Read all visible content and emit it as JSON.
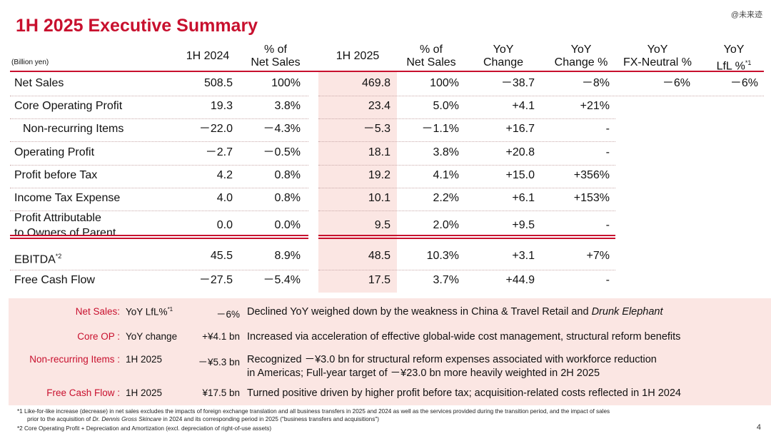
{
  "title": "1H 2025 Executive Summary",
  "watermark": "@未来迹",
  "unit_label": "(Billion yen)",
  "headers": {
    "h2024": "1H 2024",
    "pct2024_1": "% of",
    "pct2024_2": "Net Sales",
    "h2025": "1H 2025",
    "pct2025_1": "% of",
    "pct2025_2": "Net Sales",
    "yoy_1": "YoY",
    "yoy_2": "Change",
    "yoyp_1": "YoY",
    "yoyp_2": "Change %",
    "fx_1": "YoY",
    "fx_2": "FX-Neutral %",
    "lfl_1": "YoY",
    "lfl_2": "LfL %",
    "lfl_sup": "*1"
  },
  "rows": [
    {
      "label": "Net Sales",
      "v2024": "508.5",
      "p2024": "100%",
      "v2025": "469.8",
      "p2025": "100%",
      "chg": "－38.7",
      "chgp": "－8%",
      "fx": "－6%",
      "lfl": "－6%"
    },
    {
      "label": "Core Operating Profit",
      "v2024": "19.3",
      "p2024": "3.8%",
      "v2025": "23.4",
      "p2025": "5.0%",
      "chg": "+4.1",
      "chgp": "+21%",
      "fx": "",
      "lfl": ""
    },
    {
      "label": "Non-recurring Items",
      "v2024": "－22.0",
      "p2024": "－4.3%",
      "v2025": "－5.3",
      "p2025": "－1.1%",
      "chg": "+16.7",
      "chgp": "-",
      "fx": "",
      "lfl": ""
    },
    {
      "label": "Operating Profit",
      "v2024": "－2.7",
      "p2024": "－0.5%",
      "v2025": "18.1",
      "p2025": "3.8%",
      "chg": "+20.8",
      "chgp": "-",
      "fx": "",
      "lfl": ""
    },
    {
      "label": "Profit before Tax",
      "v2024": "4.2",
      "p2024": "0.8%",
      "v2025": "19.2",
      "p2025": "4.1%",
      "chg": "+15.0",
      "chgp": "+356%",
      "fx": "",
      "lfl": ""
    },
    {
      "label": "Income Tax Expense",
      "v2024": "4.0",
      "p2024": "0.8%",
      "v2025": "10.1",
      "p2025": "2.2%",
      "chg": "+6.1",
      "chgp": "+153%",
      "fx": "",
      "lfl": ""
    },
    {
      "label": "Profit Attributable",
      "label2": "to Owners of Parent",
      "v2024": "0.0",
      "p2024": "0.0%",
      "v2025": "9.5",
      "p2025": "2.0%",
      "chg": "+9.5",
      "chgp": "-",
      "fx": "",
      "lfl": ""
    },
    {
      "label": "EBITDA",
      "label_sup": "*2",
      "v2024": "45.5",
      "p2024": "8.9%",
      "v2025": "48.5",
      "p2025": "10.3%",
      "chg": "+3.1",
      "chgp": "+7%",
      "fx": "",
      "lfl": ""
    },
    {
      "label": "Free Cash Flow",
      "v2024": "－27.5",
      "p2024": "－5.4%",
      "v2025": "17.5",
      "p2025": "3.7%",
      "chg": "+44.9",
      "chgp": "-",
      "fx": "",
      "lfl": ""
    }
  ],
  "notes": [
    {
      "label": "Net Sales:",
      "metric": "YoY LfL%",
      "metric_sup": "*1",
      "value": "－6%",
      "text": "Declined YoY weighed down by the weakness in China & Travel Retail and ",
      "text_italic": "Drunk Elephant"
    },
    {
      "label": "Core OP :",
      "metric": "YoY change",
      "value": "+¥4.1 bn",
      "text": "Increased via acceleration of effective global-wide cost management, structural reform benefits"
    },
    {
      "label": "Non-recurring Items :",
      "metric": "1H 2025",
      "value": "－¥5.3 bn",
      "text": "Recognized －¥3.0 bn for structural reform expenses associated with workforce reduction",
      "text2": "in Americas; Full-year target of －¥23.0 bn more heavily weighted in 2H 2025"
    },
    {
      "label": "Free Cash Flow :",
      "metric": "1H 2025",
      "value": "¥17.5 bn",
      "text": "Turned positive driven by higher profit before tax; acquisition-related costs reflected in 1H 2024"
    }
  ],
  "footnotes": {
    "f1_line1": "*1 Like-for-like increase (decrease) in net sales excludes the impacts of foreign exchange translation and all business transfers in 2025 and 2024 as well as the services provided during the transition period, and the impact of sales",
    "f1_line2a": "prior to the acquisition of ",
    "f1_line2_italic": "Dr. Dennis Gross Skincare",
    "f1_line2b": " in 2024 and its corresponding period in 2025 (\"business transfers and acquisitions\")",
    "f2": "*2 Core Operating Profit + Depreciation and Amortization (excl. depreciation of right-of-use assets)"
  },
  "page_number": "4"
}
